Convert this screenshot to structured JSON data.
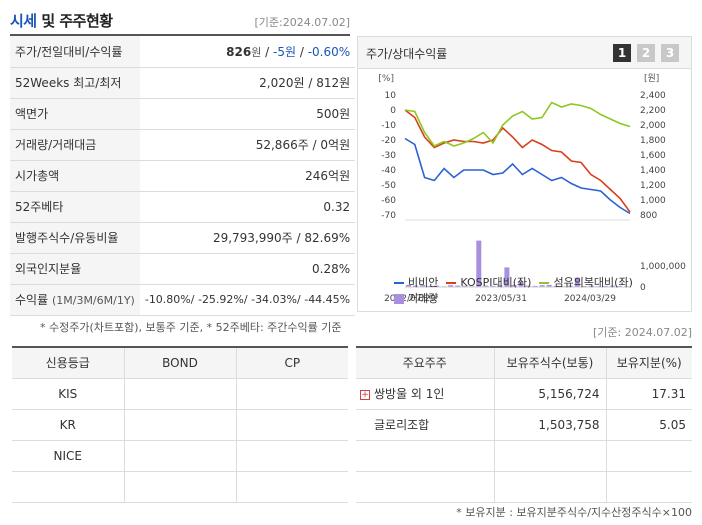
{
  "header": {
    "title_accent": "시세",
    "title_rest": " 및 주주현황",
    "date": "[기준:2024.07.02]"
  },
  "info_rows": {
    "price": {
      "label": "주가/전일대비/수익률",
      "price": "826",
      "unit": "원",
      "change": "-5원",
      "rate": "-0.60%"
    },
    "w52": {
      "label": "52Weeks 최고/최저",
      "value": "2,020원 / 812원"
    },
    "face": {
      "label": "액면가",
      "value": "500원"
    },
    "volume": {
      "label": "거래량/거래대금",
      "value": "52,866주 / 0억원"
    },
    "mcap": {
      "label": "시가총액",
      "value": "246억원"
    },
    "beta": {
      "label": "52주베타",
      "value": "0.32"
    },
    "shares": {
      "label": "발행주식수/유동비율",
      "value": "29,793,990주 / 82.69%"
    },
    "foreign": {
      "label": "외국인지분율",
      "value": "0.28%"
    },
    "returns": {
      "label": "수익률",
      "label_sub": "(1M/3M/6M/1Y)",
      "r1": "-10.80%",
      "r2": "-25.92%",
      "r3": "-34.03%",
      "r4": "-44.45%"
    }
  },
  "info_note": "* 수정주가(차트포함), 보통주 기준, * 52주베타: 주간수익률 기준",
  "chart_panel": {
    "title": "주가/상대수익률",
    "pages": [
      "1",
      "2",
      "3"
    ]
  },
  "chart_data": {
    "type": "line",
    "x_ticks": [
      "2022/07/29",
      "2023/05/31",
      "2024/03/29"
    ],
    "left_axis": {
      "unit": "[%]",
      "ticks": [
        "10",
        "0",
        "-10",
        "-20",
        "-30",
        "-40",
        "-50",
        "-60",
        "-70"
      ],
      "range": [
        -70,
        10
      ]
    },
    "right_axis": {
      "unit": "[원]",
      "ticks": [
        "2,400",
        "2,200",
        "2,000",
        "1,800",
        "1,600",
        "1,400",
        "1,200",
        "1,000",
        "800"
      ],
      "range": [
        800,
        2400
      ]
    },
    "volume_axis": {
      "ticks": [
        "1,000,000",
        "0"
      ],
      "range": [
        0,
        1400000
      ]
    },
    "series": [
      {
        "name": "비비안",
        "color": "#2a62d6",
        "values": [
          -19,
          -23,
          -45,
          -47,
          -39,
          -45,
          -40,
          -40,
          -40,
          -43,
          -42,
          -36,
          -43,
          -39,
          -43,
          -47,
          -45,
          -49,
          -52,
          -53,
          -54,
          -60,
          -65,
          -69
        ]
      },
      {
        "name": "KOSPI대비(좌)",
        "color": "#d8401c",
        "values": [
          0,
          -5,
          -18,
          -25,
          -22,
          -20,
          -21,
          -21,
          -22,
          -20,
          -12,
          -18,
          -25,
          -20,
          -23,
          -27,
          -28,
          -34,
          -35,
          -43,
          -47,
          -53,
          -59,
          -68
        ]
      },
      {
        "name": "섬유의복대비(좌)",
        "color": "#8dc820",
        "values": [
          0,
          -1,
          -15,
          -24,
          -21,
          -24,
          -22,
          -19,
          -15,
          -22,
          -10,
          -4,
          -1,
          -6,
          -5,
          5,
          2,
          4,
          3,
          1,
          -3,
          -6,
          -9,
          -11
        ]
      }
    ],
    "volume": {
      "name": "거래량",
      "color": "#a98fe0",
      "values": [
        60000,
        40000,
        50000,
        30000,
        40000,
        20000,
        50000,
        40000,
        30000,
        20000,
        1300000,
        40000,
        30000,
        50000,
        550000,
        60000,
        160000,
        40000,
        30000,
        50000,
        60000,
        30000,
        20000,
        40000,
        260000,
        30000,
        40000,
        20000,
        30000,
        40000,
        30000,
        20000
      ]
    }
  },
  "date2": "[기준: 2024.07.02]",
  "credit": {
    "headers": [
      "신용등급",
      "BOND",
      "CP"
    ],
    "rows": [
      [
        "KIS",
        "",
        ""
      ],
      [
        "KR",
        "",
        ""
      ],
      [
        "NICE",
        "",
        ""
      ],
      [
        "",
        "",
        ""
      ]
    ]
  },
  "holders": {
    "headers": [
      "주요주주",
      "보유주식수(보통)",
      "보유지분(%)"
    ],
    "rows": [
      {
        "name": "쌍방울 외 1인",
        "shares": "5,156,724",
        "pct": "17.31",
        "expand": "+"
      },
      {
        "name": "글로리조합",
        "shares": "1,503,758",
        "pct": "5.05",
        "expand": ""
      },
      {
        "name": "",
        "shares": "",
        "pct": "",
        "expand": ""
      },
      {
        "name": "",
        "shares": "",
        "pct": "",
        "expand": ""
      }
    ]
  },
  "holders_note": "* 보유지분 : 보유지분주식수/지수산정주식수×100"
}
